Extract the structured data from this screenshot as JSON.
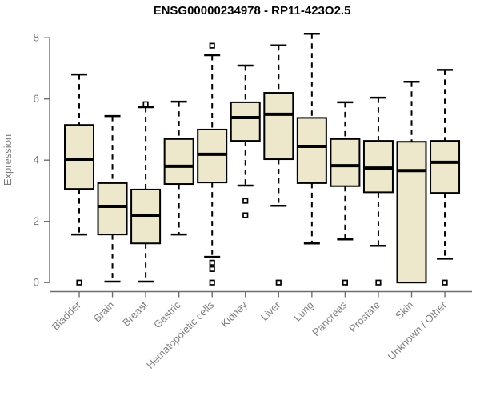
{
  "colors": {
    "background": "#FFFFFF",
    "box_fill": "#EDE8CC",
    "box_stroke": "#000000",
    "median": "#000000",
    "whisker": "#000000",
    "outlier_stroke": "#000000",
    "outlier_fill": "#FFFFFF",
    "axis_line": "#6E6E6E",
    "axis_text": "#7E7E7E",
    "title_text": "#000000"
  },
  "chart_data": {
    "type": "boxplot",
    "title": "ENSG00000234978 - RP11-423O2.5",
    "xlabel": "",
    "ylabel": "Expression",
    "ylim": [
      0,
      8
    ],
    "yticks": [
      0,
      2,
      4,
      6,
      8
    ],
    "grid": false,
    "legend": "none",
    "categories": [
      "Bladder",
      "Brain",
      "Breast",
      "Gastric",
      "Hematopoietic cells",
      "Kidney",
      "Liver",
      "Lung",
      "Pancreas",
      "Prostate",
      "Skin",
      "Unknown / Other"
    ],
    "series": [
      {
        "name": "Bladder",
        "whisker_low": 1.57,
        "q1": 3.06,
        "median": 4.03,
        "q3": 5.15,
        "whisker_high": 6.8,
        "outliers": [
          0.0
        ]
      },
      {
        "name": "Brain",
        "whisker_low": 0.03,
        "q1": 1.57,
        "median": 2.49,
        "q3": 3.25,
        "whisker_high": 5.44,
        "outliers": []
      },
      {
        "name": "Breast",
        "whisker_low": 0.03,
        "q1": 1.28,
        "median": 2.2,
        "q3": 3.04,
        "whisker_high": 5.73,
        "outliers": [
          5.83
        ]
      },
      {
        "name": "Gastric",
        "whisker_low": 1.57,
        "q1": 3.22,
        "median": 3.8,
        "q3": 4.69,
        "whisker_high": 5.91,
        "outliers": []
      },
      {
        "name": "Hematopoietic cells",
        "whisker_low": 0.84,
        "q1": 3.27,
        "median": 4.19,
        "q3": 5.0,
        "whisker_high": 7.43,
        "outliers": [
          7.74,
          0.65,
          0.44,
          0.0
        ]
      },
      {
        "name": "Kidney",
        "whisker_low": 3.17,
        "q1": 4.63,
        "median": 5.39,
        "q3": 5.89,
        "whisker_high": 7.09,
        "outliers": [
          2.67,
          2.2
        ]
      },
      {
        "name": "Liver",
        "whisker_low": 2.51,
        "q1": 4.03,
        "median": 5.5,
        "q3": 6.2,
        "whisker_high": 7.75,
        "outliers": [
          0.0
        ]
      },
      {
        "name": "Lung",
        "whisker_low": 1.28,
        "q1": 3.25,
        "median": 4.45,
        "q3": 5.38,
        "whisker_high": 8.13,
        "outliers": []
      },
      {
        "name": "Pancreas",
        "whisker_low": 1.41,
        "q1": 3.15,
        "median": 3.82,
        "q3": 4.69,
        "whisker_high": 5.89,
        "outliers": [
          0.0
        ]
      },
      {
        "name": "Prostate",
        "whisker_low": 1.2,
        "q1": 2.95,
        "median": 3.74,
        "q3": 4.63,
        "whisker_high": 6.04,
        "outliers": [
          0.0
        ]
      },
      {
        "name": "Skin",
        "whisker_low": 0.0,
        "q1": 0.0,
        "median": 3.66,
        "q3": 4.6,
        "whisker_high": 6.56,
        "outliers": []
      },
      {
        "name": "Unknown / Other",
        "whisker_low": 0.78,
        "q1": 2.93,
        "median": 3.93,
        "q3": 4.63,
        "whisker_high": 6.95,
        "outliers": [
          0.0
        ]
      }
    ]
  }
}
